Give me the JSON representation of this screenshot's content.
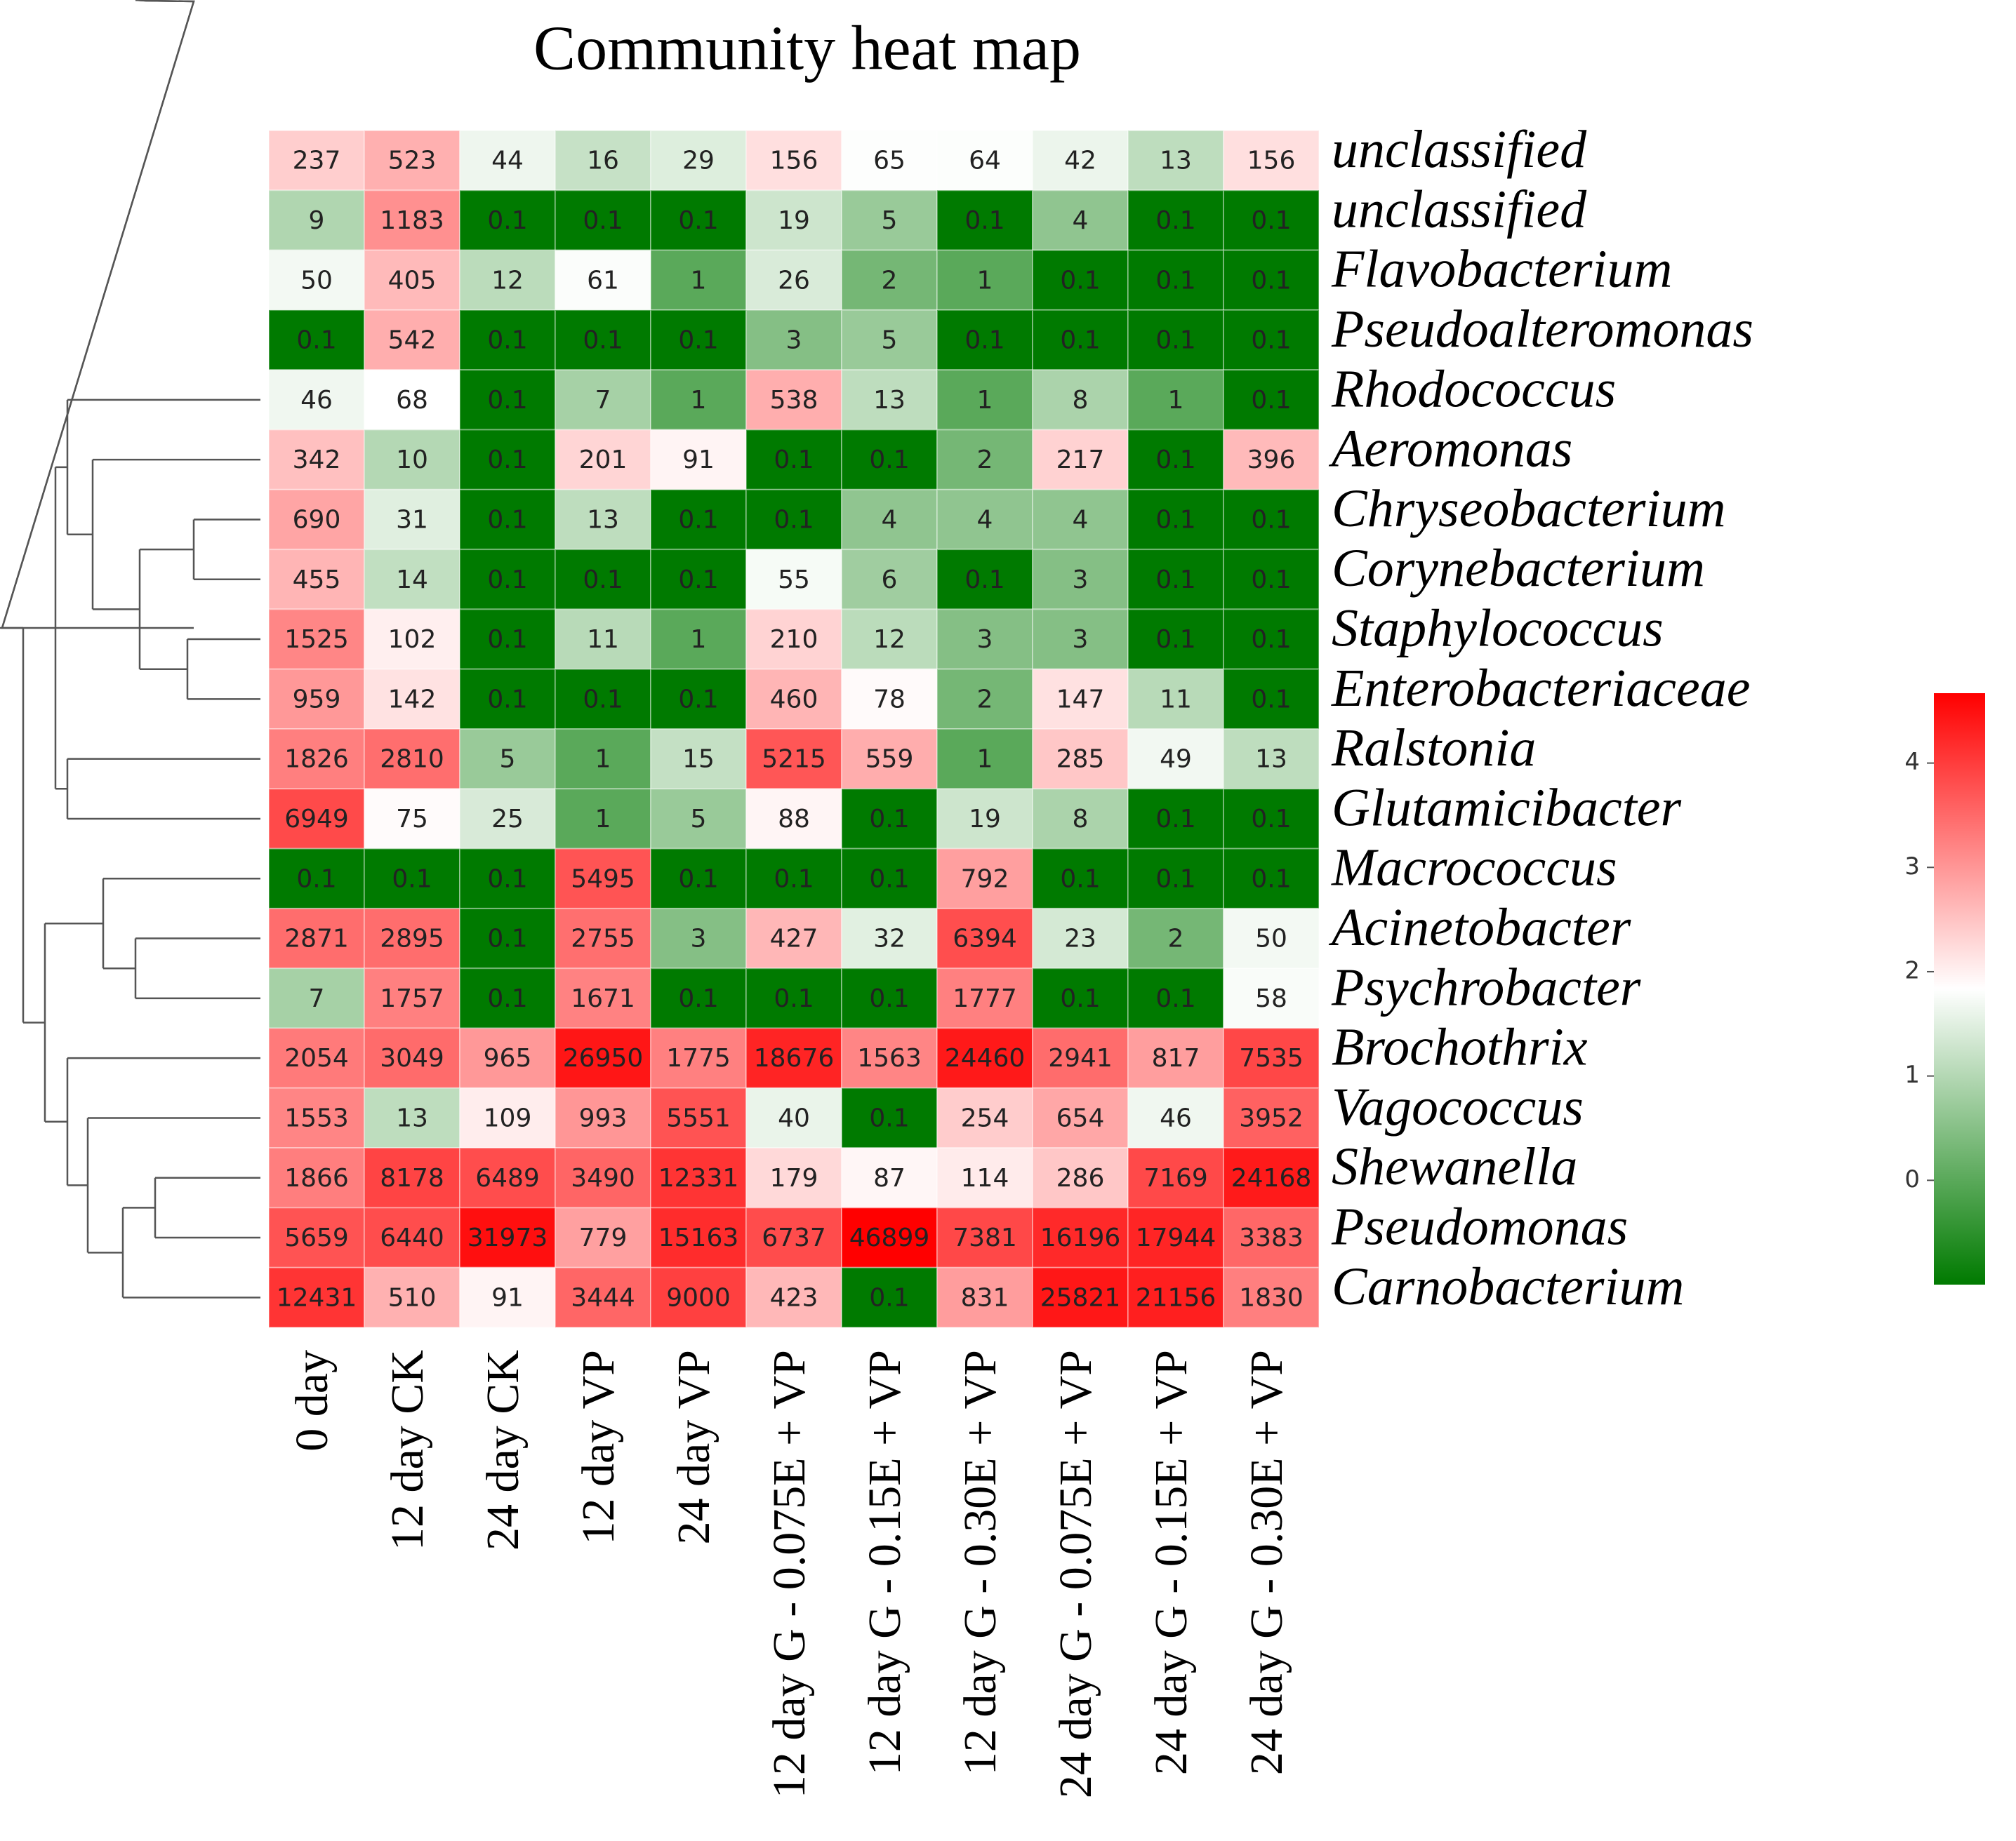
{
  "chart_data": {
    "type": "heatmap",
    "title": "Community heat map",
    "columns": [
      "0 day",
      "12 day CK",
      "24 day CK",
      "12 day VP",
      "24 day VP",
      "12 day G - 0.075E + VP",
      "12 day G - 0.15E + VP",
      "12 day G - 0.30E + VP",
      "24 day G - 0.075E + VP",
      "24 day G - 0.15E + VP",
      "24 day G - 0.30E + VP"
    ],
    "rows": [
      "unclassified",
      "unclassified",
      "Flavobacterium",
      "Pseudoalteromonas",
      "Rhodococcus",
      "Aeromonas",
      "Chryseobacterium",
      "Corynebacterium",
      "Staphylococcus",
      "Enterobacteriaceae",
      "Ralstonia",
      "Glutamicibacter",
      "Macrococcus",
      "Acinetobacter",
      "Psychrobacter",
      "Brochothrix",
      "Vagococcus",
      "Shewanella",
      "Pseudomonas",
      "Carnobacterium"
    ],
    "values": [
      [
        237,
        523,
        44,
        16,
        29,
        156,
        65,
        64,
        42,
        13,
        156
      ],
      [
        9,
        1183,
        0.1,
        0.1,
        0.1,
        19,
        5,
        0.1,
        4,
        0.1,
        0.1
      ],
      [
        50,
        405,
        12,
        61,
        1,
        26,
        2,
        1,
        0.1,
        0.1,
        0.1
      ],
      [
        0.1,
        542,
        0.1,
        0.1,
        0.1,
        3,
        5,
        0.1,
        0.1,
        0.1,
        0.1
      ],
      [
        46,
        68,
        0.1,
        7,
        1,
        538,
        13,
        1,
        8,
        1,
        0.1
      ],
      [
        342,
        10,
        0.1,
        201,
        91,
        0.1,
        0.1,
        2,
        217,
        0.1,
        396
      ],
      [
        690,
        31,
        0.1,
        13,
        0.1,
        0.1,
        4,
        4,
        4,
        0.1,
        0.1
      ],
      [
        455,
        14,
        0.1,
        0.1,
        0.1,
        55,
        6,
        0.1,
        3,
        0.1,
        0.1
      ],
      [
        1525,
        102,
        0.1,
        11,
        1,
        210,
        12,
        3,
        3,
        0.1,
        0.1
      ],
      [
        959,
        142,
        0.1,
        0.1,
        0.1,
        460,
        78,
        2,
        147,
        11,
        0.1
      ],
      [
        1826,
        2810,
        5,
        1,
        15,
        5215,
        559,
        1,
        285,
        49,
        13
      ],
      [
        6949,
        75,
        25,
        1,
        5,
        88,
        0.1,
        19,
        8,
        0.1,
        0.1
      ],
      [
        0.1,
        0.1,
        0.1,
        5495,
        0.1,
        0.1,
        0.1,
        792,
        0.1,
        0.1,
        0.1
      ],
      [
        2871,
        2895,
        0.1,
        2755,
        3,
        427,
        32,
        6394,
        23,
        2,
        50
      ],
      [
        7,
        1757,
        0.1,
        1671,
        0.1,
        0.1,
        0.1,
        1777,
        0.1,
        0.1,
        58
      ],
      [
        2054,
        3049,
        965,
        26950,
        1775,
        18676,
        1563,
        24460,
        2941,
        817,
        7535
      ],
      [
        1553,
        13,
        109,
        993,
        5551,
        40,
        0.1,
        254,
        654,
        46,
        3952
      ],
      [
        1866,
        8178,
        6489,
        3490,
        12331,
        179,
        87,
        114,
        286,
        7169,
        24168
      ],
      [
        5659,
        6440,
        31973,
        779,
        15163,
        6737,
        46899,
        7381,
        16196,
        17944,
        3383
      ],
      [
        12431,
        510,
        91,
        3444,
        9000,
        423,
        0.1,
        831,
        25821,
        21156,
        1830
      ]
    ],
    "color_scale": {
      "log_scale": true,
      "colors": [
        "#007a00",
        "#ffffff",
        "#ff0000"
      ],
      "lim": [
        -1,
        4.67
      ],
      "ticks": [
        0,
        1,
        2,
        3,
        4
      ]
    }
  }
}
